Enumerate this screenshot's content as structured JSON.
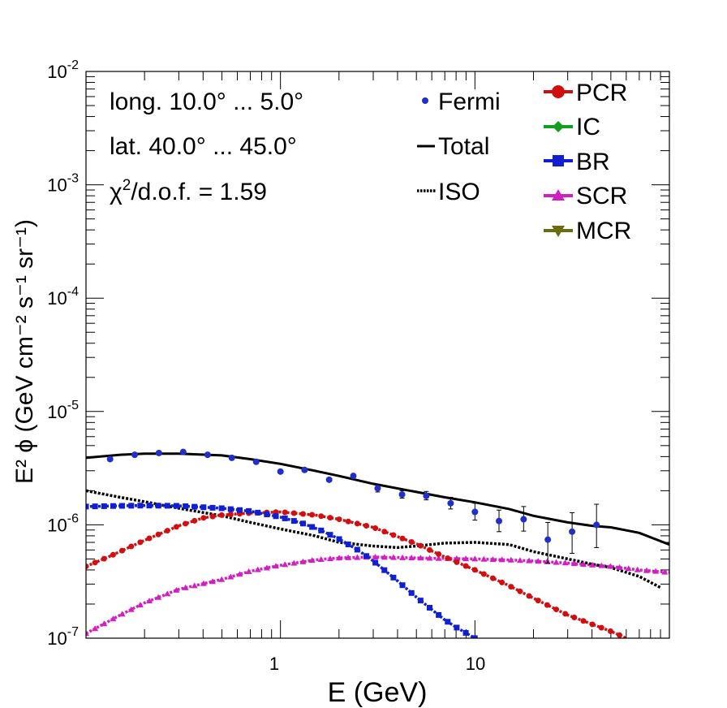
{
  "chart_data": {
    "type": "line",
    "xlabel": "E (GeV)",
    "ylabel": "E² ϕ (GeV cm⁻² s⁻¹ sr⁻¹)",
    "xscale": "log",
    "yscale": "log",
    "xlim": [
      0.1,
      100
    ],
    "ylim": [
      1e-07,
      0.01
    ],
    "x_tick_labels": [
      "1",
      "10"
    ],
    "y_tick_labels": [
      "10^-7",
      "10^-6",
      "10^-5",
      "10^-4",
      "10^-3",
      "10^-2"
    ],
    "annotations": {
      "longitude": "long. 10.0° ... 5.0°",
      "latitude": "lat. 40.0° ... 45.0°",
      "chi2_text": "/d.o.f. = 1.59",
      "chi2_symbol": "χ",
      "chi2_sup": "2"
    },
    "legend_left": [
      {
        "key": "fermi",
        "label": "Fermi"
      },
      {
        "key": "total",
        "label": "Total"
      },
      {
        "key": "iso",
        "label": "ISO"
      }
    ],
    "legend_right": [
      {
        "key": "pcr",
        "label": "PCR"
      },
      {
        "key": "ic",
        "label": "IC"
      },
      {
        "key": "br",
        "label": "BR"
      },
      {
        "key": "scr",
        "label": "SCR"
      },
      {
        "key": "mcr",
        "label": "MCR"
      }
    ],
    "colors": {
      "fermi": "#1f2fc8",
      "total": "#000000",
      "iso": "#000000",
      "pcr": "#d01010",
      "ic": "#10a020",
      "br": "#1020d0",
      "scr": "#d020c0",
      "mcr": "#6b6b10"
    },
    "fermi": {
      "x": [
        0.133,
        0.178,
        0.237,
        0.316,
        0.422,
        0.562,
        0.75,
        1.0,
        1.33,
        1.78,
        2.37,
        3.16,
        4.22,
        5.62,
        7.5,
        10.0,
        13.3,
        17.8,
        23.7,
        31.6,
        42.2,
        56.2,
        75.0
      ],
      "y": [
        3.8e-06,
        4.15e-06,
        4.3e-06,
        4.4e-06,
        4.15e-06,
        3.9e-06,
        3.6e-06,
        2.95e-06,
        3.05e-06,
        2.5e-06,
        2.7e-06,
        2.1e-06,
        1.85e-06,
        1.8e-06,
        1.55e-06,
        1.3e-06,
        1.08e-06,
        1.12e-06,
        7.4e-07,
        8.7e-07,
        1e-06,
        null,
        null
      ],
      "err_lo": [
        null,
        null,
        null,
        null,
        null,
        null,
        null,
        null,
        null,
        null,
        null,
        1.95e-06,
        1.72e-06,
        1.66e-06,
        1.38e-06,
        1.1e-06,
        8.7e-07,
        8.8e-07,
        4.6e-07,
        5.6e-07,
        6.3e-07,
        null,
        null
      ],
      "err_hi": [
        null,
        null,
        null,
        null,
        null,
        null,
        null,
        null,
        null,
        null,
        null,
        2.28e-06,
        2e-06,
        1.97e-06,
        1.75e-06,
        1.55e-06,
        1.35e-06,
        1.45e-06,
        1.05e-06,
        1.28e-06,
        1.52e-06,
        null,
        null
      ]
    },
    "series": [
      {
        "name": "Total",
        "key": "total",
        "x": [
          0.1,
          0.15,
          0.2,
          0.3,
          0.5,
          0.7,
          1.0,
          1.5,
          2.0,
          3.0,
          5.0,
          7.0,
          10.0,
          15.0,
          20.0,
          30.0,
          40.0,
          50.0,
          70.0,
          100.0
        ],
        "y": [
          3.9e-06,
          4.15e-06,
          4.25e-06,
          4.25e-06,
          4.1e-06,
          3.8e-06,
          3.45e-06,
          3e-06,
          2.7e-06,
          2.3e-06,
          1.95e-06,
          1.75e-06,
          1.58e-06,
          1.38e-06,
          1.2e-06,
          1.05e-06,
          9.8e-07,
          9.5e-07,
          8.5e-07,
          6.7e-07
        ]
      },
      {
        "name": "ISO",
        "key": "iso",
        "x": [
          0.1,
          0.15,
          0.2,
          0.3,
          0.5,
          0.7,
          1.0,
          1.5,
          2.0,
          3.0,
          4.0,
          5.0,
          7.0,
          10.0,
          15.0,
          20.0,
          30.0,
          40.0,
          50.0,
          70.0,
          90.0
        ],
        "y": [
          2e-06,
          1.75e-06,
          1.6e-06,
          1.4e-06,
          1.2e-06,
          1.05e-06,
          9.2e-07,
          8e-07,
          7e-07,
          6.5e-07,
          6.3e-07,
          6.5e-07,
          6.9e-07,
          7e-07,
          6.7e-07,
          5.8e-07,
          5e-07,
          4.5e-07,
          4.2e-07,
          3.5e-07,
          2.8e-07
        ]
      },
      {
        "name": "PCR",
        "key": "pcr",
        "x": [
          0.1,
          0.13,
          0.2,
          0.3,
          0.4,
          0.5,
          0.7,
          1.0,
          1.5,
          2.0,
          3.0,
          5.0,
          7.0,
          10.0,
          15.0,
          20.0,
          30.0,
          50.0,
          60.0
        ],
        "y": [
          4.3e-07,
          5.2e-07,
          7.3e-07,
          9.8e-07,
          1.15e-06,
          1.22e-06,
          1.27e-06,
          1.3e-06,
          1.22e-06,
          1.12e-06,
          9.5e-07,
          6.8e-07,
          5.2e-07,
          4e-07,
          2.9e-07,
          2.25e-07,
          1.6e-07,
          1.15e-07,
          1e-07
        ]
      },
      {
        "name": "BR",
        "key": "br",
        "x": [
          0.1,
          0.15,
          0.2,
          0.3,
          0.5,
          0.7,
          1.0,
          1.3,
          1.6,
          2.0,
          2.5,
          3.0,
          4.0,
          5.0,
          7.0,
          8.0,
          10.0
        ],
        "y": [
          1.45e-06,
          1.47e-06,
          1.48e-06,
          1.47e-06,
          1.4e-06,
          1.32e-06,
          1.17e-06,
          1.03e-06,
          9e-07,
          7.5e-07,
          6e-07,
          4.8e-07,
          3.2e-07,
          2.3e-07,
          1.45e-07,
          1.25e-07,
          1e-07
        ]
      },
      {
        "name": "SCR",
        "key": "scr",
        "x": [
          0.1,
          0.15,
          0.2,
          0.3,
          0.5,
          0.7,
          1.0,
          1.5,
          2.0,
          3.0,
          5.0,
          7.0,
          10.0,
          15.0,
          20.0,
          30.0,
          50.0,
          70.0,
          100.0
        ],
        "y": [
          1.1e-07,
          1.6e-07,
          2.05e-07,
          2.7e-07,
          3.3e-07,
          3.9e-07,
          4.4e-07,
          4.9e-07,
          5.1e-07,
          5.2e-07,
          5.1e-07,
          5.05e-07,
          5e-07,
          4.9e-07,
          4.8e-07,
          4.6e-07,
          4.3e-07,
          4e-07,
          3.8e-07
        ]
      }
    ]
  }
}
